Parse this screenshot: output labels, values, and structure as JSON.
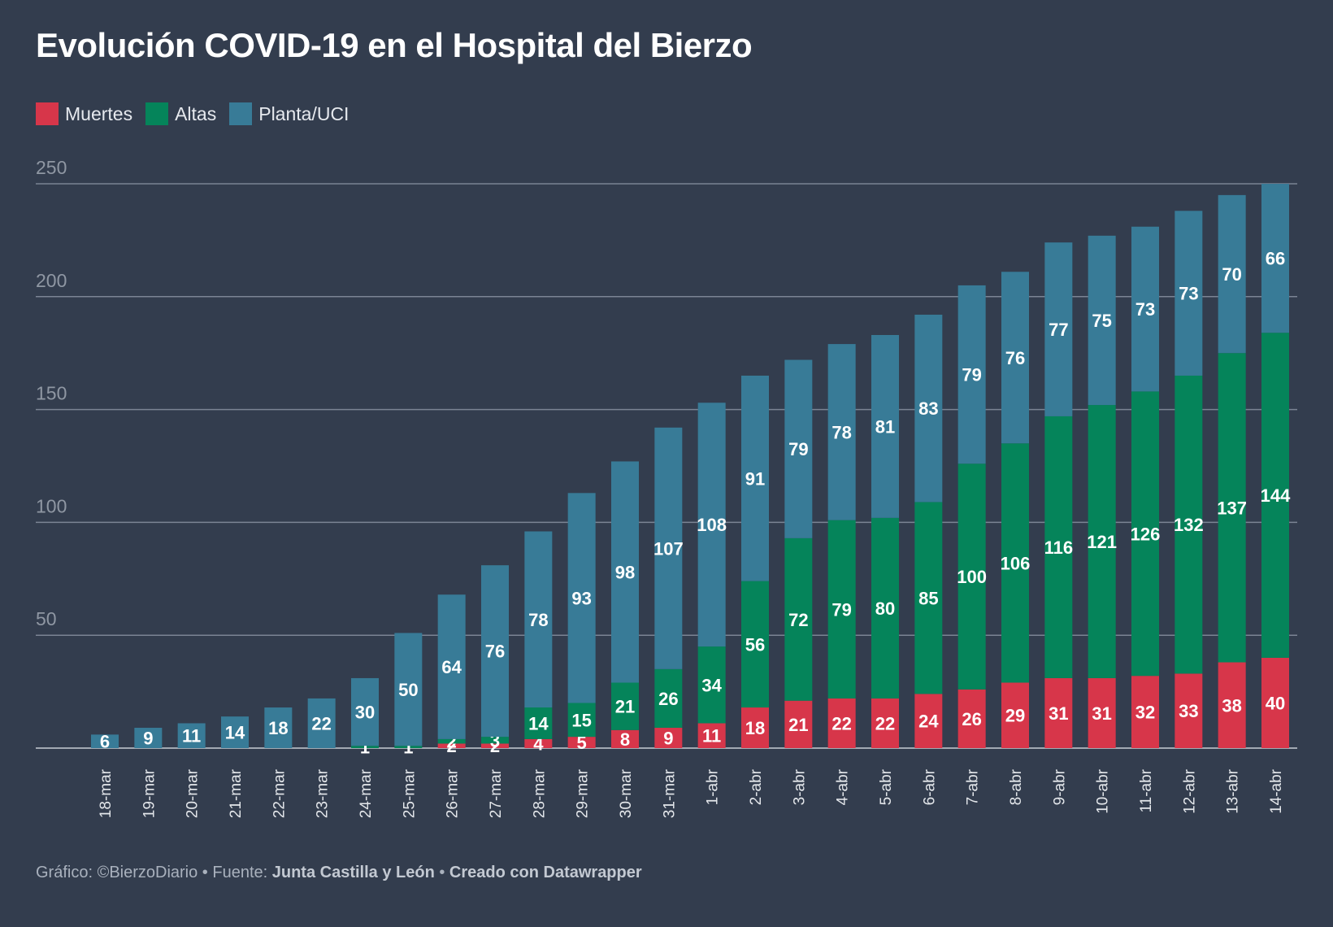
{
  "title": "Evolución COVID-19 en el Hospital del Bierzo",
  "colors": {
    "background": "#333d4e",
    "muertes": "#d7364a",
    "altas": "#05845a",
    "planta": "#387b97",
    "grid": "#7b8494",
    "axis_text": "#8f97a3"
  },
  "legend": [
    {
      "label": "Muertes",
      "color": "#d7364a"
    },
    {
      "label": "Altas",
      "color": "#05845a"
    },
    {
      "label": "Planta/UCI",
      "color": "#387b97"
    }
  ],
  "footer": {
    "prefix": "Gráfico: ©BierzoDiario • Fuente: ",
    "source": "Junta Castilla y León",
    "sep": " • ",
    "credit": "Creado con Datawrapper"
  },
  "chart_data": {
    "type": "bar",
    "stacked": true,
    "categories": [
      "18-mar",
      "19-mar",
      "20-mar",
      "21-mar",
      "22-mar",
      "23-mar",
      "24-mar",
      "25-mar",
      "26-mar",
      "27-mar",
      "28-mar",
      "29-mar",
      "30-mar",
      "31-mar",
      "1-abr",
      "2-abr",
      "3-abr",
      "4-abr",
      "5-abr",
      "6-abr",
      "7-abr",
      "8-abr",
      "9-abr",
      "10-abr",
      "11-abr",
      "12-abr",
      "13-abr",
      "14-abr"
    ],
    "series": [
      {
        "name": "Muertes",
        "color": "#d7364a",
        "values": [
          0,
          0,
          0,
          0,
          0,
          0,
          0,
          0,
          2,
          2,
          4,
          5,
          8,
          9,
          11,
          18,
          21,
          22,
          22,
          24,
          26,
          29,
          31,
          31,
          32,
          33,
          38,
          40
        ]
      },
      {
        "name": "Altas",
        "color": "#05845a",
        "values": [
          0,
          0,
          0,
          0,
          0,
          0,
          1,
          1,
          2,
          3,
          14,
          15,
          21,
          26,
          34,
          56,
          72,
          79,
          80,
          85,
          100,
          106,
          116,
          121,
          126,
          132,
          137,
          144
        ]
      },
      {
        "name": "Planta/UCI",
        "color": "#387b97",
        "values": [
          6,
          9,
          11,
          14,
          18,
          22,
          30,
          50,
          64,
          76,
          78,
          93,
          98,
          107,
          108,
          91,
          79,
          78,
          81,
          83,
          79,
          76,
          77,
          75,
          73,
          73,
          70,
          66
        ]
      }
    ],
    "ylim": [
      0,
      250
    ],
    "yticks": [
      50,
      100,
      150,
      200,
      250
    ],
    "grid": true,
    "legend_position": "top-left"
  }
}
